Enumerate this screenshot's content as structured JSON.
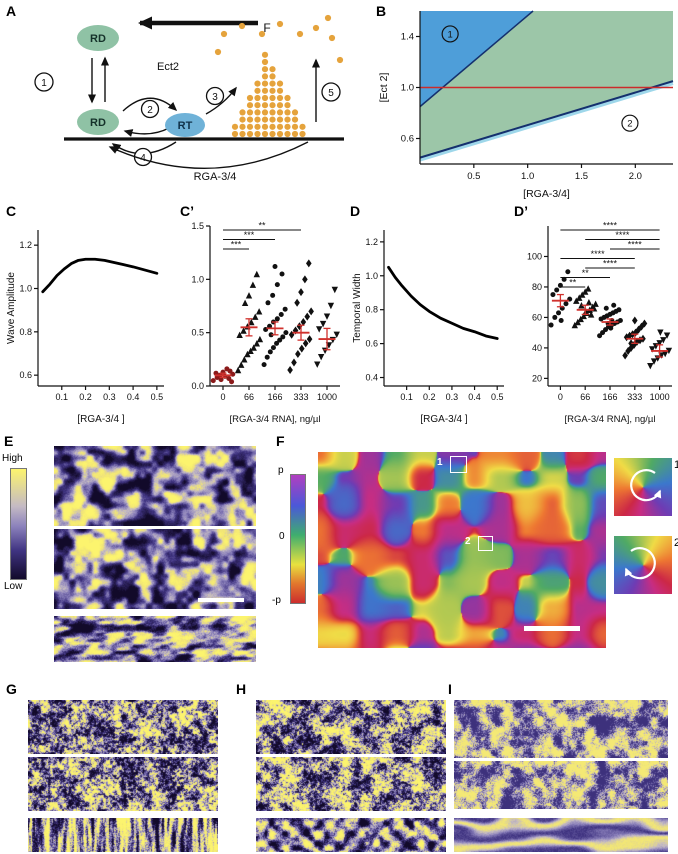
{
  "panels": {
    "a": {
      "label": "A",
      "nodes": {
        "rd_top": "RD",
        "rd_bottom": "RD",
        "rt": "RT"
      },
      "labels": {
        "ect2": "Ect2",
        "f": "F",
        "rga": "RGA-3/4"
      },
      "steps": [
        "1",
        "2",
        "3",
        "4",
        "5"
      ],
      "colors": {
        "rd": "#8fc2a5",
        "rt": "#6fb2d8",
        "dot": "#e5a33c"
      }
    },
    "b": {
      "label": "B"
    },
    "c": {
      "label": "C"
    },
    "cp": {
      "label": "C’"
    },
    "d": {
      "label": "D"
    },
    "dp": {
      "label": "D’"
    },
    "e": {
      "label": "E",
      "colorbar_top": "High",
      "colorbar_bottom": "Low"
    },
    "f": {
      "label": "F",
      "colorbar_top": "p",
      "colorbar_mid": "0",
      "colorbar_bottom": "-p",
      "box1": "1",
      "box2": "2",
      "inset1": "1",
      "inset2": "2"
    },
    "g": {
      "label": "G"
    },
    "h": {
      "label": "H"
    },
    "i": {
      "label": "I"
    }
  },
  "chart_data": [
    {
      "id": "B",
      "type": "phase-diagram",
      "xlabel": "[RGA-3/4]",
      "ylabel": "[Ect 2]",
      "xlim": [
        0,
        2.35
      ],
      "ylim": [
        0.4,
        1.6
      ],
      "xticks": [
        "0.5",
        "1.0",
        "1.5",
        "2.0"
      ],
      "yticks": [
        "0.6",
        "1.0",
        "1.4"
      ],
      "regions": [
        {
          "name": "region-2-band",
          "color": "#9cc6a8",
          "points": [
            [
              0,
              0.45
            ],
            [
              2.35,
              1.05
            ],
            [
              2.35,
              1.6
            ],
            [
              1.05,
              1.6
            ],
            [
              0,
              0.85
            ]
          ]
        },
        {
          "name": "region-1-wedge",
          "color": "#4e9ed9",
          "points": [
            [
              0,
              0.85
            ],
            [
              1.05,
              1.6
            ],
            [
              0,
              1.6
            ]
          ]
        }
      ],
      "lines": [
        {
          "name": "lower-boundary-halo",
          "color": "#9ed7ea",
          "width": 3,
          "offset": 2.5,
          "points": [
            [
              0,
              0.45
            ],
            [
              2.35,
              1.05
            ]
          ]
        },
        {
          "name": "lower-boundary",
          "color": "#14306e",
          "width": 2,
          "points": [
            [
              0,
              0.45
            ],
            [
              2.35,
              1.05
            ]
          ]
        },
        {
          "name": "upper-boundary",
          "color": "#14306e",
          "width": 1.5,
          "points": [
            [
              0,
              0.85
            ],
            [
              1.05,
              1.6
            ]
          ]
        },
        {
          "name": "ect2-baseline",
          "color": "#cc2b2b",
          "width": 1.6,
          "points": [
            [
              0,
              1.0
            ],
            [
              2.35,
              1.0
            ]
          ]
        }
      ],
      "annotations": [
        {
          "label": "1",
          "x": 0.28,
          "y": 1.42
        },
        {
          "label": "2",
          "x": 1.95,
          "y": 0.72
        }
      ]
    },
    {
      "id": "C",
      "type": "line",
      "xlabel": "[RGA-3/4 ]",
      "ylabel": "Wave Amplitude",
      "xlim": [
        0,
        0.53
      ],
      "ylim": [
        0.55,
        1.27
      ],
      "xticks": [
        "0.1",
        "0.2",
        "0.3",
        "0.4",
        "0.5"
      ],
      "yticks": [
        "0.6",
        "0.8",
        "1.0",
        "1.2"
      ],
      "points": [
        [
          0.02,
          0.985
        ],
        [
          0.05,
          1.02
        ],
        [
          0.08,
          1.06
        ],
        [
          0.11,
          1.09
        ],
        [
          0.14,
          1.115
        ],
        [
          0.17,
          1.13
        ],
        [
          0.2,
          1.135
        ],
        [
          0.24,
          1.135
        ],
        [
          0.28,
          1.13
        ],
        [
          0.32,
          1.12
        ],
        [
          0.36,
          1.11
        ],
        [
          0.4,
          1.1
        ],
        [
          0.45,
          1.085
        ],
        [
          0.5,
          1.07
        ]
      ]
    },
    {
      "id": "Cprime",
      "type": "scatter",
      "xlabel": "[RGA-3/4 RNA], ng/µl",
      "categories": [
        "0",
        "66",
        "166",
        "333",
        "1000"
      ],
      "ylim": [
        0,
        1.5
      ],
      "yticks": [
        "0.0",
        "0.5",
        "1.0",
        "1.5"
      ],
      "markers": [
        "circle",
        "triangle",
        "circle",
        "diamond",
        "triangle-down"
      ],
      "colors": [
        "#8b1a1a",
        "#111111",
        "#111111",
        "#111111",
        "#111111"
      ],
      "means": [
        0.1,
        0.55,
        0.54,
        0.5,
        0.44
      ],
      "sems": [
        0.02,
        0.08,
        0.06,
        0.07,
        0.1
      ],
      "brackets": [
        [
          0,
          3,
          "**"
        ],
        [
          0,
          2,
          "***"
        ],
        [
          0,
          1,
          "***"
        ]
      ],
      "points": [
        [
          [
            -0.25,
            0.05
          ],
          [
            -0.15,
            0.08
          ],
          [
            -0.05,
            0.06
          ],
          [
            0.05,
            0.09
          ],
          [
            0.15,
            0.07
          ],
          [
            0.25,
            0.11
          ],
          [
            -0.18,
            0.12
          ],
          [
            0.0,
            0.13
          ],
          [
            0.18,
            0.14
          ],
          [
            -0.08,
            0.1
          ],
          [
            0.1,
            0.16
          ],
          [
            0.22,
            0.04
          ]
        ],
        [
          [
            -0.28,
            0.15
          ],
          [
            -0.2,
            0.2
          ],
          [
            -0.12,
            0.25
          ],
          [
            -0.04,
            0.3
          ],
          [
            0.04,
            0.33
          ],
          [
            0.12,
            0.36
          ],
          [
            0.2,
            0.4
          ],
          [
            0.28,
            0.44
          ],
          [
            -0.24,
            0.48
          ],
          [
            -0.14,
            0.52
          ],
          [
            -0.04,
            0.56
          ],
          [
            0.06,
            0.6
          ],
          [
            0.16,
            0.65
          ],
          [
            0.26,
            0.7
          ],
          [
            -0.1,
            0.78
          ],
          [
            0.0,
            0.85
          ],
          [
            0.1,
            0.95
          ],
          [
            0.2,
            1.05
          ]
        ],
        [
          [
            -0.28,
            0.2
          ],
          [
            -0.2,
            0.27
          ],
          [
            -0.12,
            0.32
          ],
          [
            -0.04,
            0.36
          ],
          [
            0.04,
            0.4
          ],
          [
            0.12,
            0.43
          ],
          [
            0.2,
            0.46
          ],
          [
            0.28,
            0.5
          ],
          [
            -0.24,
            0.53
          ],
          [
            -0.14,
            0.56
          ],
          [
            -0.04,
            0.6
          ],
          [
            0.06,
            0.63
          ],
          [
            0.16,
            0.67
          ],
          [
            0.26,
            0.72
          ],
          [
            -0.18,
            0.78
          ],
          [
            -0.06,
            0.85
          ],
          [
            0.06,
            0.95
          ],
          [
            0.18,
            1.05
          ],
          [
            0.0,
            1.12
          ],
          [
            -0.1,
            0.48
          ]
        ],
        [
          [
            -0.28,
            0.15
          ],
          [
            -0.18,
            0.22
          ],
          [
            -0.08,
            0.3
          ],
          [
            0.02,
            0.35
          ],
          [
            0.12,
            0.4
          ],
          [
            0.22,
            0.44
          ],
          [
            -0.24,
            0.48
          ],
          [
            -0.14,
            0.52
          ],
          [
            -0.04,
            0.56
          ],
          [
            0.06,
            0.6
          ],
          [
            0.16,
            0.65
          ],
          [
            0.26,
            0.7
          ],
          [
            -0.1,
            0.78
          ],
          [
            0.0,
            0.88
          ],
          [
            0.1,
            1.0
          ],
          [
            0.2,
            1.15
          ]
        ],
        [
          [
            -0.25,
            0.2
          ],
          [
            -0.15,
            0.27
          ],
          [
            -0.05,
            0.33
          ],
          [
            0.05,
            0.38
          ],
          [
            0.15,
            0.43
          ],
          [
            0.25,
            0.48
          ],
          [
            -0.2,
            0.53
          ],
          [
            -0.1,
            0.58
          ],
          [
            0.0,
            0.65
          ],
          [
            0.1,
            0.75
          ],
          [
            0.2,
            0.9
          ]
        ]
      ]
    },
    {
      "id": "D",
      "type": "line",
      "xlabel": "[RGA-3/4 ]",
      "ylabel": "Temporal Width",
      "xlim": [
        0,
        0.53
      ],
      "ylim": [
        0.35,
        1.27
      ],
      "xticks": [
        "0.1",
        "0.2",
        "0.3",
        "0.4",
        "0.5"
      ],
      "yticks": [
        "0.4",
        "0.6",
        "0.8",
        "1.0",
        "1.2"
      ],
      "points": [
        [
          0.02,
          1.05
        ],
        [
          0.05,
          0.99
        ],
        [
          0.08,
          0.94
        ],
        [
          0.12,
          0.88
        ],
        [
          0.16,
          0.83
        ],
        [
          0.2,
          0.79
        ],
        [
          0.25,
          0.75
        ],
        [
          0.3,
          0.72
        ],
        [
          0.35,
          0.69
        ],
        [
          0.4,
          0.67
        ],
        [
          0.45,
          0.645
        ],
        [
          0.5,
          0.63
        ]
      ]
    },
    {
      "id": "Dprime",
      "type": "scatter",
      "xlabel": "[RGA-3/4 RNA], ng/µl",
      "categories": [
        "0",
        "66",
        "166",
        "333",
        "1000"
      ],
      "ylim": [
        15,
        120
      ],
      "yticks": [
        "20",
        "40",
        "60",
        "80",
        "100"
      ],
      "markers": [
        "circle",
        "triangle",
        "circle",
        "diamond",
        "triangle-down"
      ],
      "colors": [
        "#111111",
        "#111111",
        "#111111",
        "#111111",
        "#111111"
      ],
      "means": [
        71,
        65,
        57,
        46,
        38
      ],
      "sems": [
        4,
        3,
        2,
        3,
        4
      ],
      "brackets": [
        [
          0,
          4,
          "****"
        ],
        [
          1,
          4,
          "****"
        ],
        [
          2,
          4,
          "****"
        ],
        [
          0,
          3,
          "****"
        ],
        [
          1,
          3,
          "****"
        ],
        [
          0,
          2,
          "**"
        ],
        [
          0,
          1,
          "**"
        ]
      ],
      "points": [
        [
          [
            -0.25,
            55
          ],
          [
            -0.15,
            60
          ],
          [
            -0.05,
            63
          ],
          [
            0.05,
            66
          ],
          [
            0.15,
            69
          ],
          [
            0.25,
            72
          ],
          [
            -0.2,
            75
          ],
          [
            -0.1,
            78
          ],
          [
            0.0,
            81
          ],
          [
            0.1,
            85
          ],
          [
            0.2,
            90
          ],
          [
            0.02,
            58
          ]
        ],
        [
          [
            -0.28,
            55
          ],
          [
            -0.2,
            57
          ],
          [
            -0.12,
            59
          ],
          [
            -0.04,
            61
          ],
          [
            0.04,
            63
          ],
          [
            0.12,
            65
          ],
          [
            0.2,
            67
          ],
          [
            0.28,
            69
          ],
          [
            -0.24,
            71
          ],
          [
            -0.16,
            73
          ],
          [
            -0.08,
            75
          ],
          [
            0.0,
            77
          ],
          [
            0.08,
            79
          ],
          [
            0.16,
            62
          ],
          [
            0.24,
            66
          ],
          [
            -0.1,
            68
          ],
          [
            0.1,
            70
          ],
          [
            0.02,
            64
          ]
        ],
        [
          [
            -0.28,
            48
          ],
          [
            -0.2,
            50
          ],
          [
            -0.12,
            52
          ],
          [
            -0.04,
            54
          ],
          [
            0.04,
            55
          ],
          [
            0.12,
            56
          ],
          [
            0.2,
            57
          ],
          [
            0.28,
            58
          ],
          [
            -0.24,
            59
          ],
          [
            -0.16,
            60
          ],
          [
            -0.08,
            61
          ],
          [
            0.0,
            62
          ],
          [
            0.08,
            63
          ],
          [
            0.16,
            64
          ],
          [
            0.24,
            65
          ],
          [
            -0.1,
            66
          ],
          [
            0.1,
            68
          ],
          [
            0.02,
            53
          ],
          [
            -0.05,
            56
          ],
          [
            0.05,
            58
          ]
        ],
        [
          [
            -0.26,
            35
          ],
          [
            -0.18,
            38
          ],
          [
            -0.1,
            40
          ],
          [
            -0.02,
            42
          ],
          [
            0.06,
            44
          ],
          [
            0.14,
            45
          ],
          [
            0.22,
            46
          ],
          [
            -0.22,
            47
          ],
          [
            -0.14,
            48
          ],
          [
            -0.06,
            49
          ],
          [
            0.02,
            50
          ],
          [
            0.1,
            52
          ],
          [
            0.18,
            54
          ],
          [
            0.26,
            56
          ],
          [
            0.0,
            58
          ],
          [
            -0.1,
            43
          ]
        ],
        [
          [
            -0.25,
            28
          ],
          [
            -0.15,
            31
          ],
          [
            -0.05,
            33
          ],
          [
            0.05,
            35
          ],
          [
            0.15,
            36
          ],
          [
            0.25,
            38
          ],
          [
            -0.2,
            39
          ],
          [
            -0.1,
            41
          ],
          [
            0.0,
            43
          ],
          [
            0.1,
            45
          ],
          [
            0.2,
            48
          ],
          [
            0.02,
            50
          ]
        ]
      ]
    }
  ]
}
